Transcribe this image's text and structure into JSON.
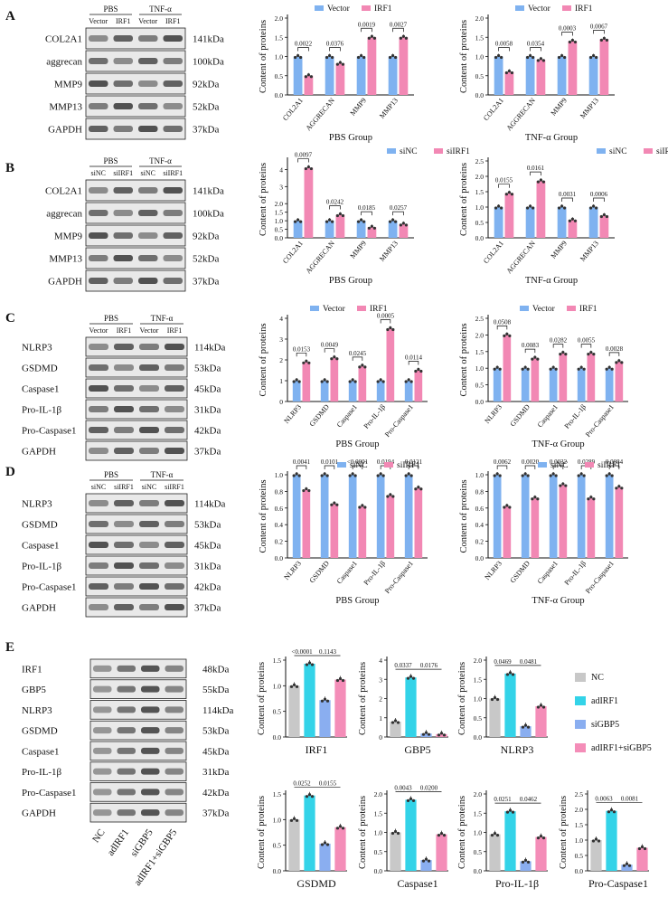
{
  "colors": {
    "vector": "#7FB2F0",
    "irf1": "#F288B4",
    "nc": "#C8C8C8",
    "adirf1": "#33D3E8",
    "sigbp5": "#8AAEF0",
    "combo": "#F48DB8"
  },
  "figure": {
    "panel_A": {
      "letter": "A",
      "blot": {
        "groups": [
          "PBS",
          "TNF-α"
        ],
        "conds": [
          "Vector",
          "IRF1",
          "Vector",
          "IRF1"
        ],
        "bands": [
          {
            "name": "COL2A1",
            "kda": "141kDa"
          },
          {
            "name": "aggrecan",
            "kda": "100kDa"
          },
          {
            "name": "MMP9",
            "kda": "92kDa"
          },
          {
            "name": "MMP13",
            "kda": "52kDa"
          },
          {
            "name": "GAPDH",
            "kda": "37kDa"
          }
        ]
      }
    },
    "panel_B": {
      "letter": "B",
      "blot": {
        "groups": [
          "PBS",
          "TNF-α"
        ],
        "conds": [
          "siNC",
          "siIRF1",
          "siNC",
          "siIRF1"
        ],
        "bands": [
          {
            "name": "COL2A1",
            "kda": "141kDa"
          },
          {
            "name": "aggrecan",
            "kda": "100kDa"
          },
          {
            "name": "MMP9",
            "kda": "92kDa"
          },
          {
            "name": "MMP13",
            "kda": "52kDa"
          },
          {
            "name": "GAPDH",
            "kda": "37kDa"
          }
        ]
      }
    },
    "panel_C": {
      "letter": "C",
      "blot": {
        "groups": [
          "PBS",
          "TNF-α"
        ],
        "conds": [
          "Vector",
          "IRF1",
          "Vector",
          "IRF1"
        ],
        "bands": [
          {
            "name": "NLRP3",
            "kda": "114kDa"
          },
          {
            "name": "GSDMD",
            "kda": "53kDa"
          },
          {
            "name": "Caspase1",
            "kda": "45kDa"
          },
          {
            "name": "Pro-IL-1β",
            "kda": "31kDa"
          },
          {
            "name": "Pro-Caspase1",
            "kda": "42kDa"
          },
          {
            "name": "GAPDH",
            "kda": "37kDa"
          }
        ]
      }
    },
    "panel_D": {
      "letter": "D",
      "blot": {
        "groups": [
          "PBS",
          "TNF-α"
        ],
        "conds": [
          "siNC",
          "siIRF1",
          "siNC",
          "siIRF1"
        ],
        "bands": [
          {
            "name": "NLRP3",
            "kda": "114kDa"
          },
          {
            "name": "GSDMD",
            "kda": "53kDa"
          },
          {
            "name": "Caspase1",
            "kda": "45kDa"
          },
          {
            "name": "Pro-IL-1β",
            "kda": "31kDa"
          },
          {
            "name": "Pro-Caspase1",
            "kda": "42kDa"
          },
          {
            "name": "GAPDH",
            "kda": "37kDa"
          }
        ]
      }
    },
    "panel_E": {
      "letter": "E",
      "blot": {
        "bands": [
          {
            "name": "IRF1",
            "kda": "48kDa"
          },
          {
            "name": "GBP5",
            "kda": "55kDa"
          },
          {
            "name": "NLRP3",
            "kda": "114kDa"
          },
          {
            "name": "GSDMD",
            "kda": "53kDa"
          },
          {
            "name": "Caspase1",
            "kda": "45kDa"
          },
          {
            "name": "Pro-IL-1β",
            "kda": "31kDa"
          },
          {
            "name": "Pro-Caspase1",
            "kda": "42kDa"
          },
          {
            "name": "GAPDH",
            "kda": "37kDa"
          }
        ],
        "lanes": [
          "NC",
          "adIRF1",
          "siGBP5",
          "adIRF1+siGBP5"
        ]
      },
      "legend": [
        "NC",
        "adIRF1",
        "siGBP5",
        "adIRF1+siGBP5"
      ]
    }
  },
  "chart_data": [
    {
      "id": "A1",
      "type": "bar",
      "xlabel": "PBS Group",
      "ylabel": "Content of proteins",
      "ylim": [
        0,
        2.0
      ],
      "yticks": [
        "0.0",
        "0.5",
        "1.0",
        "1.5",
        "2.0"
      ],
      "categories": [
        "COL2A1",
        "AGGRECAN",
        "MMP9",
        "MMP13"
      ],
      "series": [
        {
          "name": "Vector",
          "values": [
            1.0,
            1.0,
            1.0,
            1.0
          ]
        },
        {
          "name": "IRF1",
          "values": [
            0.5,
            0.82,
            1.5,
            1.5
          ]
        }
      ],
      "pvalues": [
        "0.0022",
        "0.0376",
        "0.0019",
        "0.0027"
      ]
    },
    {
      "id": "A2",
      "type": "bar",
      "xlabel": "TNF-α Group",
      "ylabel": "Content of proteins",
      "ylim": [
        0,
        2.0
      ],
      "yticks": [
        "0.0",
        "0.5",
        "1.0",
        "1.5",
        "2.0"
      ],
      "categories": [
        "COL2A1",
        "AGGRECAN",
        "MMP9",
        "MMP13"
      ],
      "series": [
        {
          "name": "Vector",
          "values": [
            1.0,
            1.0,
            1.0,
            1.0
          ]
        },
        {
          "name": "IRF1",
          "values": [
            0.6,
            0.92,
            1.4,
            1.45
          ]
        }
      ],
      "pvalues": [
        "0.0058",
        "0.0354",
        "0.0003",
        "0.0067"
      ]
    },
    {
      "id": "B1",
      "type": "bar",
      "xlabel": "PBS Group",
      "ylabel": "Content of proteins",
      "ylim": [
        0,
        4.5
      ],
      "yticks": [
        "0.0",
        "0.5",
        "1.0",
        "1.5",
        "2.0",
        "3",
        "4"
      ],
      "categories": [
        "COL2A1",
        "AGGRECAN",
        "MMP9",
        "MMP13"
      ],
      "series": [
        {
          "name": "siNC",
          "values": [
            1.0,
            1.0,
            1.0,
            1.0
          ]
        },
        {
          "name": "siIRF1",
          "values": [
            4.1,
            1.35,
            0.62,
            0.8
          ]
        }
      ],
      "pvalues": [
        "0.0097",
        "0.0242",
        "0.0185",
        "0.0257"
      ]
    },
    {
      "id": "B2",
      "type": "bar",
      "xlabel": "TNF-α Group",
      "ylabel": "Content of proteins",
      "ylim": [
        0,
        2.5
      ],
      "yticks": [
        "0.0",
        "0.5",
        "1.0",
        "1.5",
        "2.0",
        "2.5"
      ],
      "categories": [
        "COL2A1",
        "AGGRECAN",
        "MMP9",
        "MMP13"
      ],
      "series": [
        {
          "name": "siNC",
          "values": [
            1.0,
            1.0,
            1.0,
            1.0
          ]
        },
        {
          "name": "siIRF1",
          "values": [
            1.45,
            1.85,
            0.58,
            0.72
          ]
        }
      ],
      "pvalues": [
        "0.0155",
        "0.0161",
        "0.0031",
        "0.0006"
      ]
    },
    {
      "id": "C1",
      "type": "bar",
      "xlabel": "PBS Group",
      "ylabel": "Content of proteins",
      "ylim": [
        0,
        4
      ],
      "yticks": [
        "0",
        "1",
        "2",
        "3",
        "4"
      ],
      "categories": [
        "NLRP3",
        "GSDMD",
        "Caspase1",
        "Pro-IL-1β",
        "Pro-Caspase1"
      ],
      "series": [
        {
          "name": "Vector",
          "values": [
            1.0,
            1.0,
            1.0,
            1.0,
            1.0
          ]
        },
        {
          "name": "IRF1",
          "values": [
            1.9,
            2.1,
            1.7,
            3.5,
            1.5
          ]
        }
      ],
      "pvalues": [
        "0.0153",
        "0.0049",
        "0.0245",
        "0.0005",
        "0.0114"
      ]
    },
    {
      "id": "C2",
      "type": "bar",
      "xlabel": "TNF-α Group",
      "ylabel": "Content of proteins",
      "ylim": [
        0,
        2.5
      ],
      "yticks": [
        "0.0",
        "0.5",
        "1.0",
        "1.5",
        "2.0",
        "2.5"
      ],
      "categories": [
        "NLRP3",
        "GSDMD",
        "Caspase1",
        "Pro-IL-1β",
        "Pro-Caspase1"
      ],
      "series": [
        {
          "name": "Vector",
          "values": [
            1.0,
            1.0,
            1.0,
            1.0,
            1.0
          ]
        },
        {
          "name": "IRF1",
          "values": [
            2.0,
            1.3,
            1.45,
            1.45,
            1.2
          ]
        }
      ],
      "pvalues": [
        "0.0508",
        "0.0083",
        "0.0282",
        "0.0055",
        "0.0028"
      ]
    },
    {
      "id": "D1",
      "type": "bar",
      "xlabel": "PBS Group",
      "ylabel": "Content of proteins",
      "ylim": [
        0,
        1.0
      ],
      "yticks": [
        "0.0",
        "0.2",
        "0.4",
        "0.6",
        "0.8",
        "1.0"
      ],
      "categories": [
        "NLRP3",
        "GSDMD",
        "Caspase1",
        "Pro-IL-1β",
        "Pro-Caspase1"
      ],
      "series": [
        {
          "name": "siNC",
          "values": [
            1.0,
            1.0,
            1.0,
            1.0,
            1.0
          ]
        },
        {
          "name": "siIRF1",
          "values": [
            0.82,
            0.65,
            0.62,
            0.75,
            0.84
          ]
        }
      ],
      "pvalues": [
        "0.0041",
        "0.0101",
        "<0.0001",
        "0.0194",
        "0.0121"
      ]
    },
    {
      "id": "D2",
      "type": "bar",
      "xlabel": "TNF-α Group",
      "ylabel": "Content of proteins",
      "ylim": [
        0,
        1.0
      ],
      "yticks": [
        "0.0",
        "0.2",
        "0.4",
        "0.6",
        "0.8",
        "1.0"
      ],
      "categories": [
        "NLRP3",
        "GSDMD",
        "Caspase1",
        "Pro-IL-1β",
        "Pro-Caspase1"
      ],
      "series": [
        {
          "name": "siNC",
          "values": [
            1.0,
            1.0,
            1.0,
            1.0,
            1.0
          ]
        },
        {
          "name": "siIRF1",
          "values": [
            0.62,
            0.72,
            0.88,
            0.72,
            0.85
          ]
        }
      ],
      "pvalues": [
        "0.0062",
        "0.0020",
        "0.0032",
        "0.0289",
        "0.0084"
      ]
    },
    {
      "id": "E1",
      "type": "bar",
      "xlabel": "IRF1",
      "ylabel": "Content of proteins",
      "ylim": [
        0,
        1.5
      ],
      "yticks": [
        "0.0",
        "0.5",
        "1.0",
        "1.5"
      ],
      "categories": [
        "NC",
        "adIRF1",
        "siGBP5",
        "adIRF1+siGBP5"
      ],
      "values": [
        1.0,
        1.43,
        0.72,
        1.12
      ],
      "pvalues": [
        "<0.0001",
        "0.1143"
      ]
    },
    {
      "id": "E2",
      "type": "bar",
      "xlabel": "GBP5",
      "ylabel": "Content of proteins",
      "ylim": [
        0,
        4
      ],
      "yticks": [
        "0",
        "1",
        "2",
        "3",
        "4"
      ],
      "categories": [
        "NC",
        "adIRF1",
        "siGBP5",
        "adIRF1+siGBP5"
      ],
      "values": [
        0.8,
        3.1,
        0.18,
        0.15
      ],
      "pvalues": [
        "0.0337",
        "0.0176"
      ]
    },
    {
      "id": "E3",
      "type": "bar",
      "xlabel": "NLRP3",
      "ylabel": "Content of proteins",
      "ylim": [
        0,
        2.0
      ],
      "yticks": [
        "0.0",
        "0.5",
        "1.0",
        "1.5",
        "2.0"
      ],
      "categories": [
        "NC",
        "adIRF1",
        "siGBP5",
        "adIRF1+siGBP5"
      ],
      "values": [
        1.0,
        1.65,
        0.28,
        0.8
      ],
      "pvalues": [
        "0.0469",
        "0.0481"
      ]
    },
    {
      "id": "E4",
      "type": "bar",
      "xlabel": "GSDMD",
      "ylabel": "Content of proteins",
      "ylim": [
        0,
        1.5
      ],
      "yticks": [
        "0.0",
        "0.5",
        "1.0",
        "1.5"
      ],
      "categories": [
        "NC",
        "adIRF1",
        "siGBP5",
        "adIRF1+siGBP5"
      ],
      "values": [
        1.0,
        1.47,
        0.53,
        0.85
      ],
      "pvalues": [
        "0.0252",
        "0.0155"
      ]
    },
    {
      "id": "E5",
      "type": "bar",
      "xlabel": "Caspase1",
      "ylabel": "Content of proteins",
      "ylim": [
        0,
        2.0
      ],
      "yticks": [
        "0.0",
        "0.5",
        "1.0",
        "1.5",
        "2.0"
      ],
      "categories": [
        "NC",
        "adIRF1",
        "siGBP5",
        "adIRF1+siGBP5"
      ],
      "values": [
        1.0,
        1.85,
        0.28,
        0.95
      ],
      "pvalues": [
        "0.0043",
        "0.0200"
      ]
    },
    {
      "id": "E6",
      "type": "bar",
      "xlabel": "Pro-IL-1β",
      "ylabel": "Content of proteins",
      "ylim": [
        0,
        2.0
      ],
      "yticks": [
        "0.0",
        "0.5",
        "1.0",
        "1.5",
        "2.0"
      ],
      "categories": [
        "NC",
        "adIRF1",
        "siGBP5",
        "adIRF1+siGBP5"
      ],
      "values": [
        0.95,
        1.55,
        0.25,
        0.88
      ],
      "pvalues": [
        "0.0251",
        "0.0462"
      ]
    },
    {
      "id": "E7",
      "type": "bar",
      "xlabel": "Pro-Caspase1",
      "ylabel": "Content of proteins",
      "ylim": [
        0,
        2.5
      ],
      "yticks": [
        "0.0",
        "0.5",
        "1.0",
        "1.5",
        "2.0",
        "2.5"
      ],
      "categories": [
        "NC",
        "adIRF1",
        "siGBP5",
        "adIRF1+siGBP5"
      ],
      "values": [
        1.0,
        1.95,
        0.2,
        0.75
      ],
      "pvalues": [
        "0.0063",
        "0.0081"
      ]
    }
  ]
}
